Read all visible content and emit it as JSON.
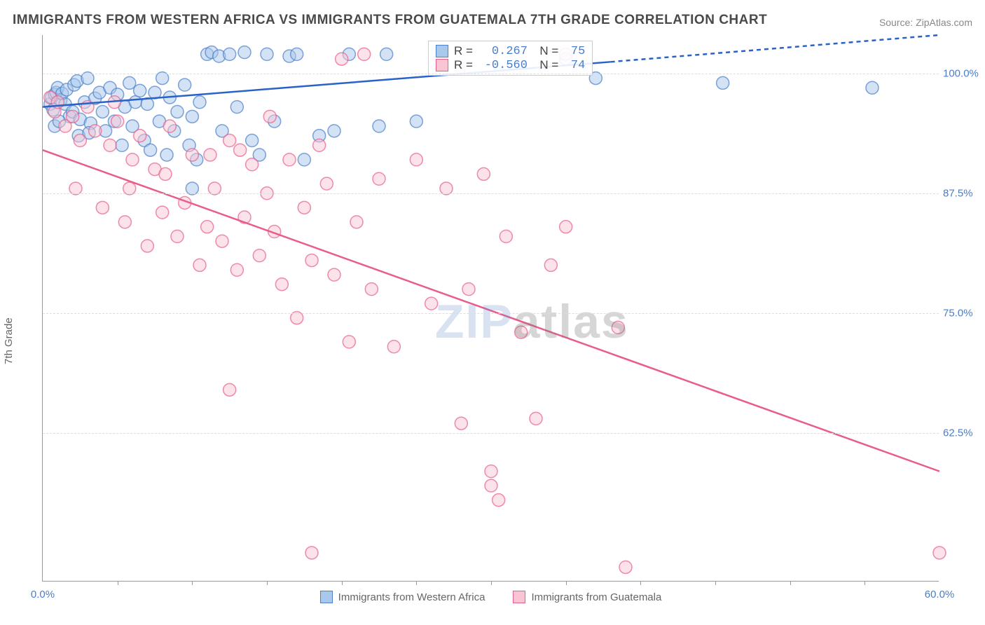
{
  "title": "IMMIGRANTS FROM WESTERN AFRICA VS IMMIGRANTS FROM GUATEMALA 7TH GRADE CORRELATION CHART",
  "source": "Source: ZipAtlas.com",
  "ylabel": "7th Grade",
  "watermark": "ZIPatlas",
  "xlim": [
    0,
    60
  ],
  "ylim": [
    47,
    104
  ],
  "xtick_labels": [
    "0.0%",
    "60.0%"
  ],
  "xtick_positions": [
    0,
    60
  ],
  "xtick_minor": [
    5,
    10,
    15,
    20,
    25,
    30,
    35,
    40,
    45,
    50,
    55
  ],
  "ytick_labels": [
    "62.5%",
    "75.0%",
    "87.5%",
    "100.0%"
  ],
  "ytick_positions": [
    62.5,
    75.0,
    87.5,
    100.0
  ],
  "series": [
    {
      "name": "Immigrants from Western Africa",
      "color_fill": "#a8c8ec",
      "color_stroke": "#4a7ec8",
      "line_color": "#2962c8",
      "r_value": "0.267",
      "n_value": "75",
      "regression": {
        "x1": 0,
        "y1": 96.5,
        "x2": 38,
        "y2": 101.2,
        "x2_dash": 60,
        "y2_dash": 104
      },
      "points": [
        [
          0.5,
          96.8
        ],
        [
          0.6,
          97.5
        ],
        [
          0.7,
          96.2
        ],
        [
          0.8,
          97.8
        ],
        [
          0.9,
          98.0
        ],
        [
          1.0,
          98.5
        ],
        [
          1.2,
          97.2
        ],
        [
          1.3,
          97.9
        ],
        [
          1.5,
          96.8
        ],
        [
          1.6,
          98.3
        ],
        [
          1.8,
          95.5
        ],
        [
          2.0,
          96.0
        ],
        [
          2.1,
          98.8
        ],
        [
          2.3,
          99.2
        ],
        [
          2.5,
          95.2
        ],
        [
          2.8,
          97.0
        ],
        [
          3.0,
          99.5
        ],
        [
          3.2,
          94.8
        ],
        [
          3.5,
          97.4
        ],
        [
          3.8,
          98.0
        ],
        [
          4.0,
          96.0
        ],
        [
          4.2,
          94.0
        ],
        [
          4.5,
          98.5
        ],
        [
          4.8,
          95.0
        ],
        [
          5.0,
          97.8
        ],
        [
          5.3,
          92.5
        ],
        [
          5.5,
          96.5
        ],
        [
          5.8,
          99.0
        ],
        [
          6.0,
          94.5
        ],
        [
          6.2,
          97.0
        ],
        [
          6.5,
          98.2
        ],
        [
          6.8,
          93.0
        ],
        [
          7.0,
          96.8
        ],
        [
          7.2,
          92.0
        ],
        [
          7.5,
          98.0
        ],
        [
          7.8,
          95.0
        ],
        [
          8.0,
          99.5
        ],
        [
          8.3,
          91.5
        ],
        [
          8.5,
          97.5
        ],
        [
          8.8,
          94.0
        ],
        [
          9.0,
          96.0
        ],
        [
          9.5,
          98.8
        ],
        [
          9.8,
          92.5
        ],
        [
          10.0,
          95.5
        ],
        [
          10.3,
          91.0
        ],
        [
          10.5,
          97.0
        ],
        [
          11.0,
          102.0
        ],
        [
          11.3,
          102.2
        ],
        [
          11.8,
          101.8
        ],
        [
          12.0,
          94.0
        ],
        [
          12.5,
          102.0
        ],
        [
          13.0,
          96.5
        ],
        [
          13.5,
          102.2
        ],
        [
          14.0,
          93.0
        ],
        [
          14.5,
          91.5
        ],
        [
          15.0,
          102.0
        ],
        [
          15.5,
          95.0
        ],
        [
          16.5,
          101.8
        ],
        [
          17.0,
          102.0
        ],
        [
          17.5,
          91.0
        ],
        [
          18.5,
          93.5
        ],
        [
          19.5,
          94.0
        ],
        [
          20.5,
          102.0
        ],
        [
          22.5,
          94.5
        ],
        [
          23.0,
          102.0
        ],
        [
          25.0,
          95.0
        ],
        [
          35.0,
          101.5
        ],
        [
          37.0,
          99.5
        ],
        [
          45.5,
          99
        ],
        [
          55.5,
          98.5
        ],
        [
          10.0,
          88.0
        ],
        [
          0.8,
          94.5
        ],
        [
          1.1,
          95.0
        ],
        [
          2.4,
          93.5
        ],
        [
          3.1,
          93.8
        ]
      ]
    },
    {
      "name": "Immigrants from Guatemala",
      "color_fill": "#f9c5d4",
      "color_stroke": "#e85d8c",
      "line_color": "#e85d8c",
      "r_value": "-0.560",
      "n_value": "74",
      "regression": {
        "x1": 0,
        "y1": 92.0,
        "x2": 60,
        "y2": 58.5,
        "x2_dash": 60,
        "y2_dash": 58.5
      },
      "points": [
        [
          0.5,
          97.5
        ],
        [
          0.8,
          96.0
        ],
        [
          1.0,
          97.0
        ],
        [
          1.5,
          94.5
        ],
        [
          2.0,
          95.5
        ],
        [
          2.5,
          93.0
        ],
        [
          3.0,
          96.5
        ],
        [
          3.5,
          94.0
        ],
        [
          4.0,
          86.0
        ],
        [
          4.5,
          92.5
        ],
        [
          5.0,
          95.0
        ],
        [
          5.5,
          84.5
        ],
        [
          6.0,
          91.0
        ],
        [
          6.5,
          93.5
        ],
        [
          7.0,
          82.0
        ],
        [
          7.5,
          90.0
        ],
        [
          8.0,
          85.5
        ],
        [
          8.5,
          94.5
        ],
        [
          9.0,
          83.0
        ],
        [
          9.5,
          86.5
        ],
        [
          10.0,
          91.5
        ],
        [
          10.5,
          80.0
        ],
        [
          11.0,
          84.0
        ],
        [
          11.5,
          88.0
        ],
        [
          12.0,
          82.5
        ],
        [
          12.5,
          93.0
        ],
        [
          13.0,
          79.5
        ],
        [
          13.5,
          85.0
        ],
        [
          14.0,
          90.5
        ],
        [
          14.5,
          81.0
        ],
        [
          15.0,
          87.5
        ],
        [
          15.5,
          83.5
        ],
        [
          16.0,
          78.0
        ],
        [
          16.5,
          91.0
        ],
        [
          17.0,
          74.5
        ],
        [
          17.5,
          86.0
        ],
        [
          18.0,
          80.5
        ],
        [
          18.5,
          92.5
        ],
        [
          19.0,
          88.5
        ],
        [
          19.5,
          79.0
        ],
        [
          20.0,
          101.5
        ],
        [
          20.5,
          72.0
        ],
        [
          21.0,
          84.5
        ],
        [
          21.5,
          102.0
        ],
        [
          22.0,
          77.5
        ],
        [
          22.5,
          89.0
        ],
        [
          23.5,
          71.5
        ],
        [
          25.0,
          91.0
        ],
        [
          26.0,
          76.0
        ],
        [
          27.0,
          88.0
        ],
        [
          28.0,
          63.5
        ],
        [
          28.5,
          77.5
        ],
        [
          29.5,
          89.5
        ],
        [
          30.5,
          55.5
        ],
        [
          31.0,
          83.0
        ],
        [
          32.0,
          73.0
        ],
        [
          33.0,
          64.0
        ],
        [
          34.0,
          80.0
        ],
        [
          35.0,
          84.0
        ],
        [
          35.0,
          102.0
        ],
        [
          18.0,
          50.0
        ],
        [
          39.0,
          48.5
        ],
        [
          12.5,
          67.0
        ],
        [
          30.0,
          57.0
        ],
        [
          30.0,
          58.5
        ],
        [
          5.8,
          88
        ],
        [
          8.2,
          89.5
        ],
        [
          11.2,
          91.5
        ],
        [
          38.5,
          73.5
        ],
        [
          60,
          50.0
        ],
        [
          2.2,
          88.0
        ],
        [
          4.8,
          97.0
        ],
        [
          15.2,
          95.5
        ],
        [
          13.2,
          92.0
        ]
      ]
    }
  ],
  "legend_bottom": [
    {
      "label": "Immigrants from Western Africa",
      "fill": "#a8c8ec",
      "stroke": "#4a7ec8"
    },
    {
      "label": "Immigrants from Guatemala",
      "fill": "#f9c5d4",
      "stroke": "#e85d8c"
    }
  ],
  "marker_radius": 9,
  "marker_opacity": 0.5,
  "line_width": 2.5
}
